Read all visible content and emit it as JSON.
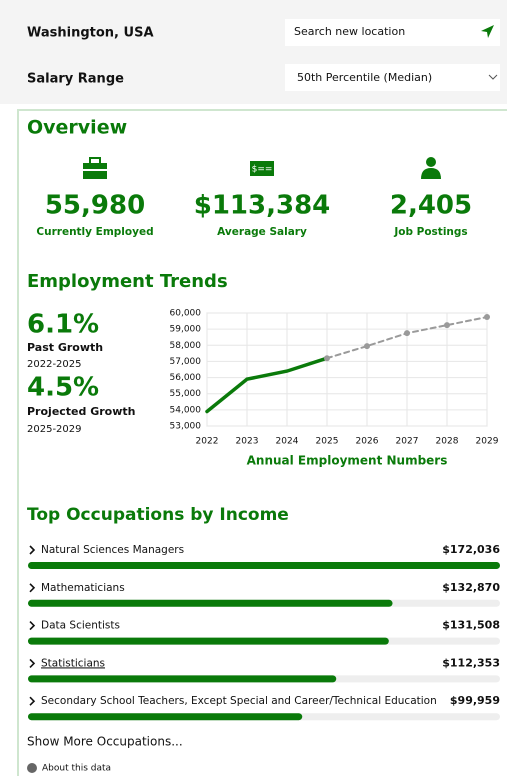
{
  "header": {
    "location": "Washington, USA",
    "search_placeholder": "Search new location",
    "salary_range_label": "Salary Range",
    "salary_range_value": "50th Percentile (Median)"
  },
  "overview": {
    "title": "Overview",
    "stats": [
      {
        "value": "55,980",
        "label": "Currently Employed"
      },
      {
        "value": "$113,384",
        "label": "Average Salary"
      },
      {
        "value": "2,405",
        "label": "Job Postings"
      }
    ]
  },
  "employment_trends": {
    "title": "Employment Trends",
    "past_growth": {
      "value": "6.1%",
      "label": "Past Growth",
      "period": "2022-2025"
    },
    "projected_growth": {
      "value": "4.5%",
      "label": "Projected Growth",
      "period": "2025-2029"
    },
    "chart": {
      "type": "line",
      "x_label": "Annual Employment Numbers",
      "x": [
        2022,
        2023,
        2024,
        2025,
        2026,
        2027,
        2028,
        2029
      ],
      "xlim": [
        2022,
        2029
      ],
      "xticks": [
        2022,
        2023,
        2024,
        2025,
        2026,
        2027,
        2028,
        2029
      ],
      "ylim": [
        53000,
        60000
      ],
      "yticks": [
        {
          "value": 53000,
          "label": "53,000"
        },
        {
          "value": 54000,
          "label": "54,000"
        },
        {
          "value": 55000,
          "label": "55,000"
        },
        {
          "value": 56000,
          "label": "56,000"
        },
        {
          "value": 57000,
          "label": "57,000"
        },
        {
          "value": 58000,
          "label": "58,000"
        },
        {
          "value": 59000,
          "label": "59,000"
        },
        {
          "value": 60000,
          "label": "60,000"
        }
      ],
      "grid": true,
      "series": [
        {
          "color": "#0a7a0a",
          "style": "solid",
          "values": [
            53900,
            55900,
            56400,
            57200,
            null,
            null,
            null,
            null
          ]
        },
        {
          "color": "#9a9a9a",
          "style": "dashed",
          "values": [
            null,
            null,
            null,
            57200,
            57950,
            58750,
            59250,
            59750
          ]
        }
      ]
    }
  },
  "top_occupations": {
    "title": "Top Occupations by Income",
    "color": "#0a7a0a",
    "items": [
      {
        "name": "Natural Sciences Managers",
        "value": 172036,
        "value_label": "$172,036"
      },
      {
        "name": "Mathematicians",
        "value": 132870,
        "value_label": "$132,870"
      },
      {
        "name": "Data Scientists",
        "value": 131508,
        "value_label": "$131,508"
      },
      {
        "name": "Statisticians",
        "value": 112353,
        "value_label": "$112,353"
      },
      {
        "name": "Secondary School Teachers, Except Special and Career/Technical Education",
        "value": 99959,
        "value_label": "$99,959"
      }
    ],
    "show_more": "Show More Occupations...",
    "about": "About this data"
  }
}
